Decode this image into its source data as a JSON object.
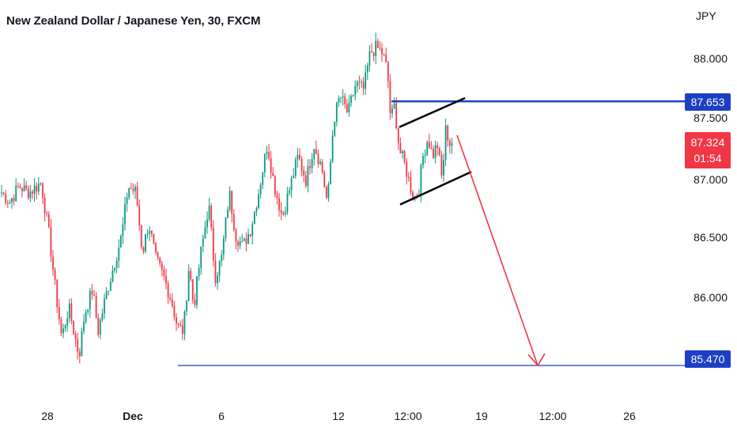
{
  "header": {
    "title": "New Zealand Dollar / Japanese Yen, 30, FXCM",
    "currency": "JPY"
  },
  "price_badges": {
    "resistance": "87.653",
    "last_price": "87.324",
    "countdown": "01:54",
    "target": "85.470"
  },
  "colors": {
    "up": "#089981",
    "down": "#f23645",
    "level_line": "#1c3fc4",
    "channel": "#000000",
    "arrow": "#f23645",
    "axis_text": "#131722"
  },
  "chart_data": {
    "type": "candlestick",
    "symbol": "NZDJPY",
    "timeframe": "30",
    "y_axis": {
      "ticks": [
        88.0,
        87.5,
        87.0,
        86.5,
        86.0
      ],
      "tick_labels": [
        "88.000",
        "87.500",
        "87.000",
        "86.500",
        "86.000"
      ]
    },
    "x_axis": {
      "tick_labels": [
        "28",
        "Dec",
        "6",
        "12",
        "12:00",
        "19",
        "12:00",
        "26"
      ]
    },
    "approx_path": [
      [
        0,
        86.9
      ],
      [
        10,
        86.82
      ],
      [
        22,
        86.95
      ],
      [
        35,
        86.9
      ],
      [
        50,
        86.98
      ],
      [
        60,
        86.55
      ],
      [
        68,
        86.1
      ],
      [
        76,
        85.7
      ],
      [
        85,
        85.95
      ],
      [
        93,
        85.7
      ],
      [
        98,
        85.55
      ],
      [
        105,
        85.9
      ],
      [
        115,
        86.1
      ],
      [
        122,
        85.75
      ],
      [
        132,
        86.05
      ],
      [
        142,
        86.3
      ],
      [
        152,
        86.55
      ],
      [
        160,
        86.95
      ],
      [
        170,
        86.9
      ],
      [
        178,
        86.4
      ],
      [
        186,
        86.65
      ],
      [
        195,
        86.35
      ],
      [
        205,
        86.2
      ],
      [
        215,
        86.0
      ],
      [
        222,
        85.8
      ],
      [
        230,
        85.75
      ],
      [
        237,
        86.3
      ],
      [
        243,
        85.95
      ],
      [
        252,
        86.4
      ],
      [
        262,
        86.8
      ],
      [
        270,
        86.2
      ],
      [
        278,
        86.35
      ],
      [
        288,
        86.9
      ],
      [
        296,
        86.55
      ],
      [
        305,
        86.45
      ],
      [
        315,
        86.6
      ],
      [
        325,
        86.9
      ],
      [
        336,
        87.3
      ],
      [
        345,
        86.95
      ],
      [
        355,
        86.7
      ],
      [
        365,
        86.95
      ],
      [
        375,
        87.2
      ],
      [
        385,
        87.0
      ],
      [
        395,
        87.3
      ],
      [
        405,
        87.1
      ],
      [
        412,
        86.8
      ],
      [
        420,
        87.5
      ],
      [
        428,
        87.7
      ],
      [
        438,
        87.55
      ],
      [
        448,
        87.8
      ],
      [
        458,
        87.75
      ],
      [
        466,
        88.05
      ],
      [
        474,
        88.1
      ],
      [
        482,
        88.05
      ],
      [
        488,
        87.9
      ],
      [
        492,
        87.5
      ],
      [
        497,
        87.62
      ],
      [
        503,
        87.25
      ],
      [
        509,
        87.15
      ],
      [
        515,
        87.0
      ],
      [
        521,
        86.85
      ],
      [
        527,
        86.9
      ],
      [
        533,
        87.2
      ],
      [
        539,
        87.35
      ],
      [
        545,
        87.2
      ],
      [
        551,
        87.3
      ],
      [
        557,
        87.0
      ],
      [
        562,
        87.45
      ],
      [
        566,
        87.3
      ],
      [
        570,
        87.32
      ]
    ],
    "levels": [
      {
        "label": "resistance",
        "value": 87.653
      },
      {
        "label": "target",
        "value": 85.47
      }
    ],
    "channel": {
      "upper": [
        [
          87.44,
          "start"
        ],
        [
          87.68,
          "end"
        ]
      ],
      "lower": [
        [
          86.8,
          "start"
        ],
        [
          87.07,
          "end"
        ]
      ]
    },
    "projection": {
      "from": 87.32,
      "to": 85.47,
      "direction": "down"
    },
    "current_price": 87.324
  }
}
